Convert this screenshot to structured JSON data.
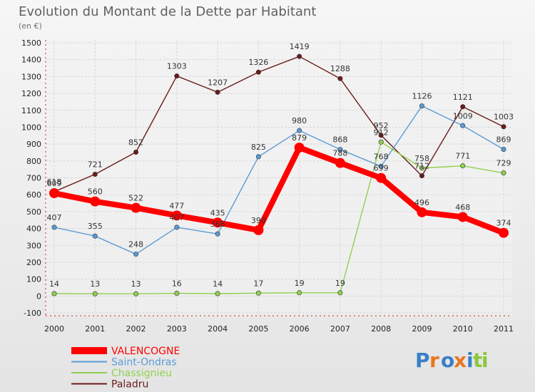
{
  "chart_data": {
    "type": "line",
    "title": "Evolution du Montant de la Dette par Habitant",
    "subtitle": "(en €)",
    "x": [
      "2000",
      "2001",
      "2002",
      "2003",
      "2004",
      "2005",
      "2006",
      "2007",
      "2008",
      "2009",
      "2010",
      "2011"
    ],
    "ylim": [
      -100,
      1500
    ],
    "yticks": [
      -100,
      0,
      100,
      200,
      300,
      400,
      500,
      600,
      700,
      800,
      900,
      1000,
      1100,
      1200,
      1300,
      1400,
      1500
    ],
    "grid": true,
    "legend": "bottom-left",
    "series": [
      {
        "name": "VALENCOGNE",
        "color": "#ff0000",
        "values": [
          609,
          560,
          522,
          477,
          435,
          390,
          879,
          788,
          699,
          496,
          468,
          374
        ]
      },
      {
        "name": "Saint-Ondras",
        "color": "#5b9bd5",
        "values": [
          407,
          355,
          248,
          407,
          368,
          825,
          980,
          868,
          768,
          1126,
          1009,
          869
        ]
      },
      {
        "name": "Chassignieu",
        "color": "#92d050",
        "values": [
          14,
          13,
          13,
          16,
          14,
          17,
          19,
          19,
          912,
          758,
          771,
          729
        ]
      },
      {
        "name": "Paladru",
        "color": "#6b1b1b",
        "values": [
          618,
          721,
          852,
          1303,
          1207,
          1326,
          1419,
          1288,
          952,
          712,
          1121,
          1003
        ]
      }
    ],
    "data_labels": [
      [
        609,
        560,
        522,
        477,
        435,
        390,
        879,
        788,
        699,
        496,
        468,
        374
      ],
      [
        407,
        355,
        248,
        407,
        368,
        825,
        980,
        868,
        768,
        1126,
        1009,
        869
      ],
      [
        14,
        13,
        13,
        16,
        14,
        17,
        19,
        19,
        912,
        758,
        771,
        729
      ],
      [
        618,
        721,
        852,
        1303,
        1207,
        1326,
        1419,
        1288,
        952,
        712,
        1121,
        1003
      ]
    ]
  },
  "brand": {
    "text": "Proxiti",
    "letters": [
      "P",
      "r",
      "o",
      "x",
      "i",
      "t",
      "i"
    ],
    "colors": [
      "#3a7fc8",
      "#e87722",
      "#3a7fc8",
      "#e87722",
      "#3a7fc8",
      "#8dc63f",
      "#8dc63f"
    ]
  }
}
